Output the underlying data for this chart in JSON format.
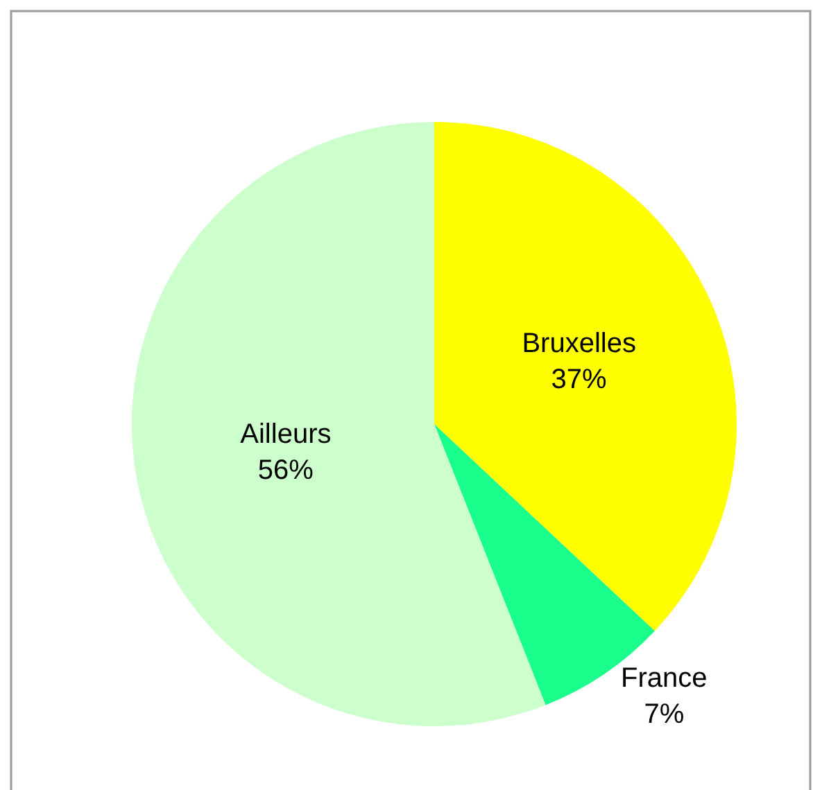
{
  "chart_data": {
    "type": "pie",
    "categories": [
      "Bruxelles",
      "France",
      "Ailleurs"
    ],
    "values": [
      37,
      7,
      56
    ],
    "value_labels": [
      "37%",
      "7%",
      "56%"
    ],
    "colors": [
      "#ffff00",
      "#1aff8c",
      "#ccffcc"
    ],
    "legend": false
  }
}
